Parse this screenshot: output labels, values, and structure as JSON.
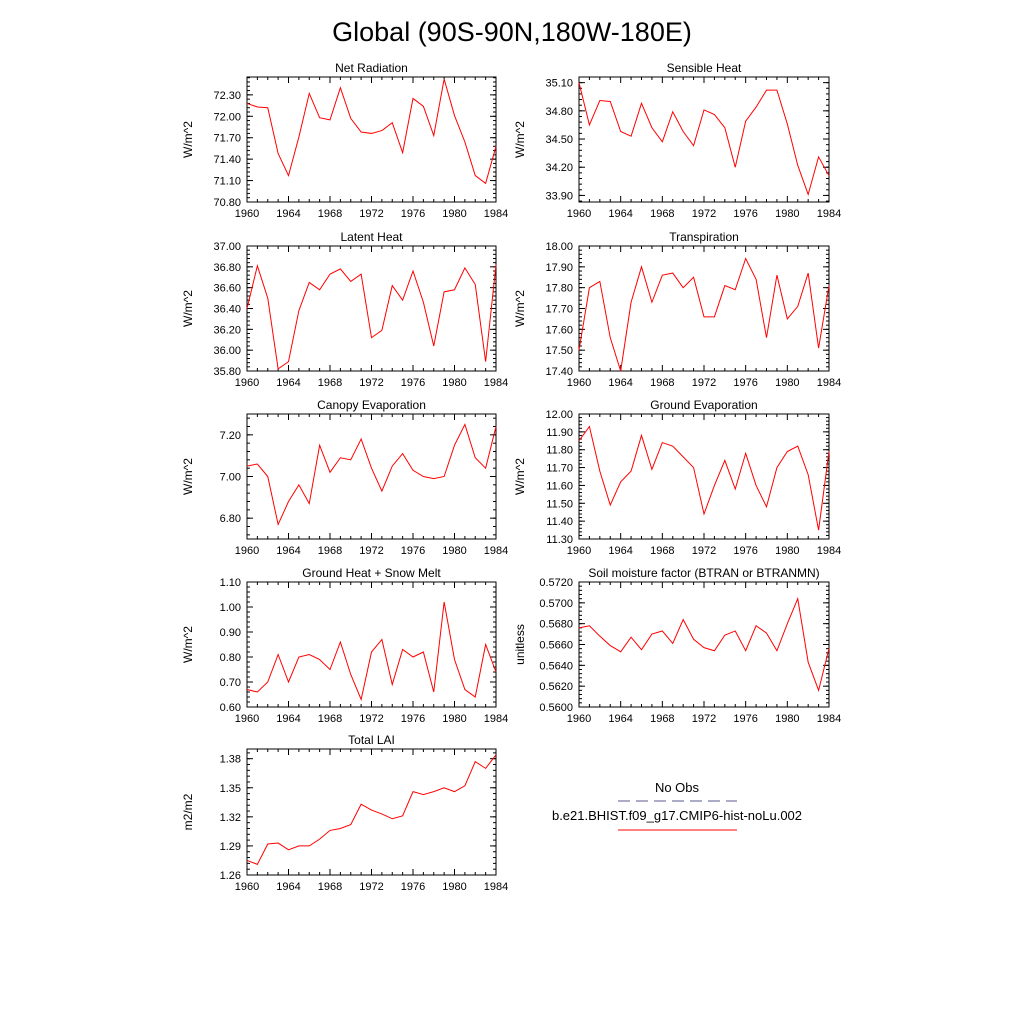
{
  "title": "Global (90S-90N,180W-180E)",
  "chart_data": [
    {
      "type": "line",
      "title": "Net Radiation",
      "ylabel": "W/m^2",
      "xlim": [
        1960,
        1984
      ],
      "ylim": [
        70.8,
        72.55
      ],
      "x_ticks": [
        "1960",
        "1964",
        "1968",
        "1972",
        "1976",
        "1980",
        "1984"
      ],
      "y_ticks": [
        "70.80",
        "71.10",
        "71.40",
        "71.70",
        "72.00",
        "72.30"
      ],
      "x": [
        1960,
        1961,
        1962,
        1963,
        1964,
        1965,
        1966,
        1967,
        1968,
        1969,
        1970,
        1971,
        1972,
        1973,
        1974,
        1975,
        1976,
        1977,
        1978,
        1979,
        1980,
        1981,
        1982,
        1983,
        1984
      ],
      "series": [
        {
          "values": [
            72.18,
            72.13,
            72.12,
            71.48,
            71.17,
            71.71,
            72.32,
            71.98,
            71.95,
            72.4,
            71.97,
            71.78,
            71.76,
            71.8,
            71.91,
            71.49,
            72.25,
            72.14,
            71.73,
            72.52,
            72.01,
            71.64,
            71.17,
            71.06,
            71.58
          ]
        }
      ]
    },
    {
      "type": "line",
      "title": "Sensible Heat",
      "ylabel": "W/m^2",
      "xlim": [
        1960,
        1984
      ],
      "ylim": [
        33.83,
        35.16
      ],
      "x_ticks": [
        "1960",
        "1964",
        "1968",
        "1972",
        "1976",
        "1980",
        "1984"
      ],
      "y_ticks": [
        "33.90",
        "34.20",
        "34.50",
        "34.80",
        "35.10"
      ],
      "x": [
        1960,
        1961,
        1962,
        1963,
        1964,
        1965,
        1966,
        1967,
        1968,
        1969,
        1970,
        1971,
        1972,
        1973,
        1974,
        1975,
        1976,
        1977,
        1978,
        1979,
        1980,
        1981,
        1982,
        1983,
        1984
      ],
      "series": [
        {
          "values": [
            35.1,
            34.65,
            34.91,
            34.9,
            34.58,
            34.53,
            34.88,
            34.62,
            34.47,
            34.79,
            34.58,
            34.43,
            34.81,
            34.76,
            34.62,
            34.2,
            34.69,
            34.84,
            35.02,
            35.02,
            34.66,
            34.22,
            33.91,
            34.31,
            34.11
          ]
        }
      ]
    },
    {
      "type": "line",
      "title": "Latent Heat",
      "ylabel": "W/m^2",
      "xlim": [
        1960,
        1984
      ],
      "ylim": [
        35.8,
        37.0
      ],
      "x_ticks": [
        "1960",
        "1964",
        "1968",
        "1972",
        "1976",
        "1980",
        "1984"
      ],
      "y_ticks": [
        "35.80",
        "36.00",
        "36.20",
        "36.40",
        "36.60",
        "36.80",
        "37.00"
      ],
      "x": [
        1960,
        1961,
        1962,
        1963,
        1964,
        1965,
        1966,
        1967,
        1968,
        1969,
        1970,
        1971,
        1972,
        1973,
        1974,
        1975,
        1976,
        1977,
        1978,
        1979,
        1980,
        1981,
        1982,
        1983,
        1984
      ],
      "series": [
        {
          "values": [
            36.4,
            36.81,
            36.5,
            35.82,
            35.89,
            36.38,
            36.65,
            36.58,
            36.73,
            36.78,
            36.66,
            36.73,
            36.12,
            36.19,
            36.62,
            36.48,
            36.76,
            36.46,
            36.04,
            36.56,
            36.58,
            36.79,
            36.63,
            35.89,
            36.82
          ]
        }
      ]
    },
    {
      "type": "line",
      "title": "Transpiration",
      "ylabel": "W/m^2",
      "xlim": [
        1960,
        1984
      ],
      "ylim": [
        17.4,
        18.0
      ],
      "x_ticks": [
        "1960",
        "1964",
        "1968",
        "1972",
        "1976",
        "1980",
        "1984"
      ],
      "y_ticks": [
        "17.40",
        "17.50",
        "17.60",
        "17.70",
        "17.80",
        "17.90",
        "18.00"
      ],
      "x": [
        1960,
        1961,
        1962,
        1963,
        1964,
        1965,
        1966,
        1967,
        1968,
        1969,
        1970,
        1971,
        1972,
        1973,
        1974,
        1975,
        1976,
        1977,
        1978,
        1979,
        1980,
        1981,
        1982,
        1983,
        1984
      ],
      "series": [
        {
          "values": [
            17.5,
            17.8,
            17.83,
            17.56,
            17.4,
            17.73,
            17.9,
            17.73,
            17.86,
            17.87,
            17.8,
            17.85,
            17.66,
            17.66,
            17.81,
            17.79,
            17.94,
            17.84,
            17.56,
            17.86,
            17.65,
            17.71,
            17.87,
            17.51,
            17.81
          ]
        }
      ]
    },
    {
      "type": "line",
      "title": "Canopy Evaporation",
      "ylabel": "W/m^2",
      "xlim": [
        1960,
        1984
      ],
      "ylim": [
        6.7,
        7.3
      ],
      "x_ticks": [
        "1960",
        "1964",
        "1968",
        "1972",
        "1976",
        "1980",
        "1984"
      ],
      "y_ticks": [
        "6.80",
        "7.00",
        "7.20"
      ],
      "x": [
        1960,
        1961,
        1962,
        1963,
        1964,
        1965,
        1966,
        1967,
        1968,
        1969,
        1970,
        1971,
        1972,
        1973,
        1974,
        1975,
        1976,
        1977,
        1978,
        1979,
        1980,
        1981,
        1982,
        1983,
        1984
      ],
      "series": [
        {
          "values": [
            7.05,
            7.06,
            7.0,
            6.77,
            6.88,
            6.96,
            6.87,
            7.15,
            7.02,
            7.09,
            7.08,
            7.18,
            7.04,
            6.93,
            7.05,
            7.11,
            7.03,
            7.0,
            6.99,
            7.0,
            7.15,
            7.25,
            7.09,
            7.04,
            7.24
          ]
        }
      ]
    },
    {
      "type": "line",
      "title": "Ground Evaporation",
      "ylabel": "W/m^2",
      "xlim": [
        1960,
        1984
      ],
      "ylim": [
        11.3,
        12.0
      ],
      "x_ticks": [
        "1960",
        "1964",
        "1968",
        "1972",
        "1976",
        "1980",
        "1984"
      ],
      "y_ticks": [
        "11.30",
        "11.40",
        "11.50",
        "11.60",
        "11.70",
        "11.80",
        "11.90",
        "12.00"
      ],
      "x": [
        1960,
        1961,
        1962,
        1963,
        1964,
        1965,
        1966,
        1967,
        1968,
        1969,
        1970,
        1971,
        1972,
        1973,
        1974,
        1975,
        1976,
        1977,
        1978,
        1979,
        1980,
        1981,
        1982,
        1983,
        1984
      ],
      "series": [
        {
          "values": [
            11.85,
            11.93,
            11.68,
            11.49,
            11.62,
            11.68,
            11.88,
            11.69,
            11.84,
            11.82,
            11.76,
            11.7,
            11.44,
            11.6,
            11.74,
            11.58,
            11.78,
            11.6,
            11.48,
            11.7,
            11.79,
            11.82,
            11.66,
            11.35,
            11.79
          ]
        }
      ]
    },
    {
      "type": "line",
      "title": "Ground Heat + Snow Melt",
      "ylabel": "W/m^2",
      "xlim": [
        1960,
        1984
      ],
      "ylim": [
        0.6,
        1.1
      ],
      "x_ticks": [
        "1960",
        "1964",
        "1968",
        "1972",
        "1976",
        "1980",
        "1984"
      ],
      "y_ticks": [
        "0.60",
        "0.70",
        "0.80",
        "0.90",
        "1.00",
        "1.10"
      ],
      "x": [
        1960,
        1961,
        1962,
        1963,
        1964,
        1965,
        1966,
        1967,
        1968,
        1969,
        1970,
        1971,
        1972,
        1973,
        1974,
        1975,
        1976,
        1977,
        1978,
        1979,
        1980,
        1981,
        1982,
        1983,
        1984
      ],
      "series": [
        {
          "values": [
            0.67,
            0.66,
            0.7,
            0.81,
            0.7,
            0.8,
            0.81,
            0.79,
            0.75,
            0.86,
            0.73,
            0.63,
            0.82,
            0.87,
            0.69,
            0.83,
            0.8,
            0.82,
            0.66,
            1.02,
            0.79,
            0.67,
            0.64,
            0.85,
            0.74
          ]
        }
      ]
    },
    {
      "type": "line",
      "title": "Soil moisture factor (BTRAN or BTRANMN)",
      "ylabel": "unitless",
      "xlim": [
        1960,
        1984
      ],
      "ylim": [
        0.56,
        0.572
      ],
      "x_ticks": [
        "1960",
        "1964",
        "1968",
        "1972",
        "1976",
        "1980",
        "1984"
      ],
      "y_ticks": [
        "0.5600",
        "0.5620",
        "0.5640",
        "0.5660",
        "0.5680",
        "0.5700",
        "0.5720"
      ],
      "x": [
        1960,
        1961,
        1962,
        1963,
        1964,
        1965,
        1966,
        1967,
        1968,
        1969,
        1970,
        1971,
        1972,
        1973,
        1974,
        1975,
        1976,
        1977,
        1978,
        1979,
        1980,
        1981,
        1982,
        1983,
        1984
      ],
      "series": [
        {
          "values": [
            0.5676,
            0.5678,
            0.5668,
            0.5659,
            0.5653,
            0.5667,
            0.5655,
            0.567,
            0.5673,
            0.5661,
            0.5684,
            0.5665,
            0.5657,
            0.5654,
            0.5669,
            0.5673,
            0.5654,
            0.5678,
            0.5671,
            0.5654,
            0.568,
            0.5704,
            0.5643,
            0.5616,
            0.5656
          ]
        }
      ]
    },
    {
      "type": "line",
      "title": "Total LAI",
      "ylabel": "m2/m2",
      "xlim": [
        1960,
        1984
      ],
      "ylim": [
        1.26,
        1.39
      ],
      "x_ticks": [
        "1960",
        "1964",
        "1968",
        "1972",
        "1976",
        "1980",
        "1984"
      ],
      "y_ticks": [
        "1.26",
        "1.29",
        "1.32",
        "1.35",
        "1.38"
      ],
      "x": [
        1960,
        1961,
        1962,
        1963,
        1964,
        1965,
        1966,
        1967,
        1968,
        1969,
        1970,
        1971,
        1972,
        1973,
        1974,
        1975,
        1976,
        1977,
        1978,
        1979,
        1980,
        1981,
        1982,
        1983,
        1984
      ],
      "series": [
        {
          "values": [
            1.275,
            1.271,
            1.292,
            1.293,
            1.286,
            1.29,
            1.29,
            1.297,
            1.306,
            1.308,
            1.312,
            1.333,
            1.327,
            1.323,
            1.318,
            1.321,
            1.346,
            1.343,
            1.346,
            1.35,
            1.346,
            1.352,
            1.377,
            1.37,
            1.384
          ]
        }
      ]
    }
  ],
  "legend": {
    "items": [
      {
        "label": "No Obs",
        "color": "#5a5a8c",
        "style": "dashed"
      },
      {
        "label": "b.e21.BHIST.f09_g17.CMIP6-hist-noLu.002",
        "color": "#ff0000",
        "style": "solid"
      }
    ]
  }
}
